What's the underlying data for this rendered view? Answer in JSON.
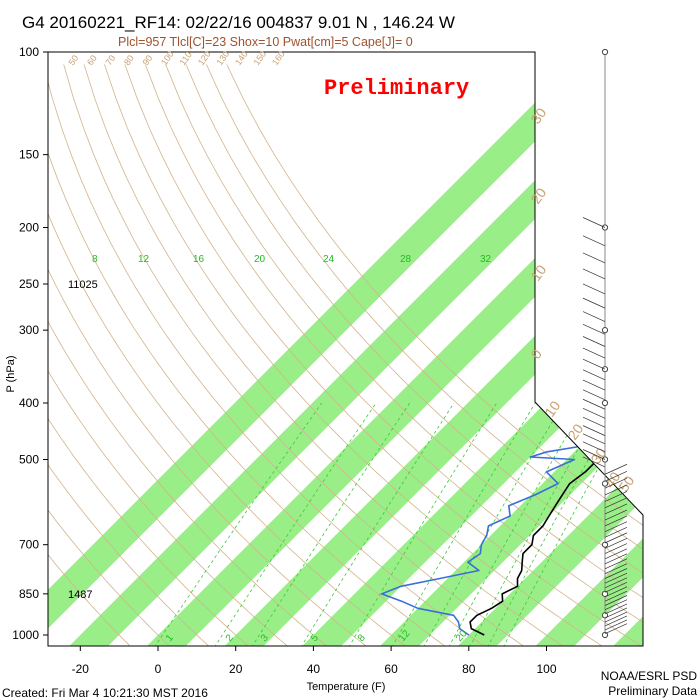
{
  "header": {
    "title": "G4 20160221_RF14: 02/22/16 004837   9.01 N , 146.24 W",
    "subtitle": "Plcl=957 Tlcl[C]=23 Shox=10 Pwat[cm]=5 Cape[J]= 0",
    "watermark": "Preliminary"
  },
  "footer": {
    "created": "Created: Fri Mar  4 10:21:30 MST 2016",
    "credit_line1": "NOAA/ESRL PSD",
    "credit_line2": "Preliminary Data"
  },
  "colors": {
    "temperature": "#000000",
    "dewpoint": "#3a6fd8",
    "isotherm_band": "#99ee88",
    "dry_adiabat": "#d2b48c",
    "mixing_ratio": "#33cc33",
    "watermark": "#ff0000"
  },
  "chart_data": {
    "type": "line",
    "title": "G4 20160221_RF14: 02/22/16 004837   9.01 N , 146.24 W",
    "xlabel": "Temperature (F)",
    "ylabel": "P (hPa)",
    "xlim": [
      -30,
      130
    ],
    "ylim": [
      1000,
      100
    ],
    "y_scale": "log",
    "x_ticks": [
      -20,
      0,
      20,
      40,
      60,
      80,
      100
    ],
    "y_ticks": [
      100,
      150,
      200,
      250,
      300,
      400,
      500,
      700,
      850,
      1000
    ],
    "grid": false,
    "series": [
      {
        "name": "temperature",
        "points": [
          [
            84,
            1000
          ],
          [
            79,
            975
          ],
          [
            77,
            950
          ],
          [
            77,
            925
          ],
          [
            79,
            900
          ],
          [
            80,
            875
          ],
          [
            78,
            850
          ],
          [
            80,
            825
          ],
          [
            78,
            800
          ],
          [
            77,
            775
          ],
          [
            75,
            750
          ],
          [
            73,
            725
          ],
          [
            73,
            700
          ],
          [
            71,
            675
          ],
          [
            71,
            650
          ],
          [
            70,
            625
          ],
          [
            69,
            600
          ],
          [
            68,
            575
          ],
          [
            67,
            550
          ],
          [
            68,
            525
          ],
          [
            68,
            500
          ],
          [
            66,
            475
          ],
          [
            63,
            450
          ],
          [
            61,
            425
          ],
          [
            60,
            400
          ],
          [
            58,
            375
          ],
          [
            57,
            350
          ],
          [
            54,
            325
          ],
          [
            52,
            300
          ],
          [
            50,
            275
          ],
          [
            48,
            250
          ],
          [
            45,
            225
          ],
          [
            42,
            200
          ],
          [
            38,
            180
          ],
          [
            34,
            175
          ]
        ]
      },
      {
        "name": "dewpoint",
        "points": [
          [
            80,
            1000
          ],
          [
            76,
            975
          ],
          [
            74,
            950
          ],
          [
            71,
            925
          ],
          [
            60,
            900
          ],
          [
            54,
            875
          ],
          [
            47,
            850
          ],
          [
            50,
            825
          ],
          [
            58,
            800
          ],
          [
            66,
            775
          ],
          [
            61,
            750
          ],
          [
            62,
            725
          ],
          [
            60,
            700
          ],
          [
            59,
            675
          ],
          [
            57,
            650
          ],
          [
            60,
            625
          ],
          [
            57,
            600
          ],
          [
            61,
            575
          ],
          [
            64,
            550
          ],
          [
            58,
            525
          ],
          [
            62,
            500
          ],
          [
            50,
            495
          ],
          [
            53,
            485
          ],
          [
            60,
            475
          ],
          [
            62,
            450
          ],
          [
            59,
            425
          ],
          [
            63,
            400
          ],
          [
            60,
            375
          ],
          [
            56,
            360
          ],
          [
            47,
            350
          ],
          [
            49,
            330
          ],
          [
            44,
            325
          ],
          [
            45,
            300
          ],
          [
            42,
            290
          ],
          [
            49,
            275
          ],
          [
            45,
            250
          ],
          [
            40,
            230
          ],
          [
            36,
            215
          ],
          [
            31,
            205
          ],
          [
            26,
            200
          ]
        ]
      }
    ],
    "isotherm_bands": [
      -40,
      -20,
      0,
      20,
      40,
      60,
      80,
      100,
      120
    ],
    "dry_adiabat_labels": [
      "50",
      "60",
      "70",
      "80",
      "90",
      "100",
      "110",
      "120",
      "130",
      "140",
      "150",
      "160"
    ],
    "theta_e_labels": [
      "30",
      "20",
      "10",
      "0",
      "10",
      "20",
      "30",
      "40",
      "50"
    ],
    "mixing_ratio_labels": [
      "1",
      "2",
      "3",
      "5",
      "8",
      "12",
      "16",
      "20",
      "24",
      "28",
      "32"
    ],
    "mixing_ratio_upper_labels": [
      "8",
      "12",
      "16",
      "20",
      "24",
      "28",
      "32"
    ],
    "height_labels": [
      {
        "text": "11025",
        "pressure": 250
      },
      {
        "text": "1487",
        "pressure": 850
      }
    ],
    "wind_barb_pressures": [
      100,
      200,
      300,
      350,
      400,
      500,
      550,
      700,
      850,
      925,
      1000
    ]
  }
}
